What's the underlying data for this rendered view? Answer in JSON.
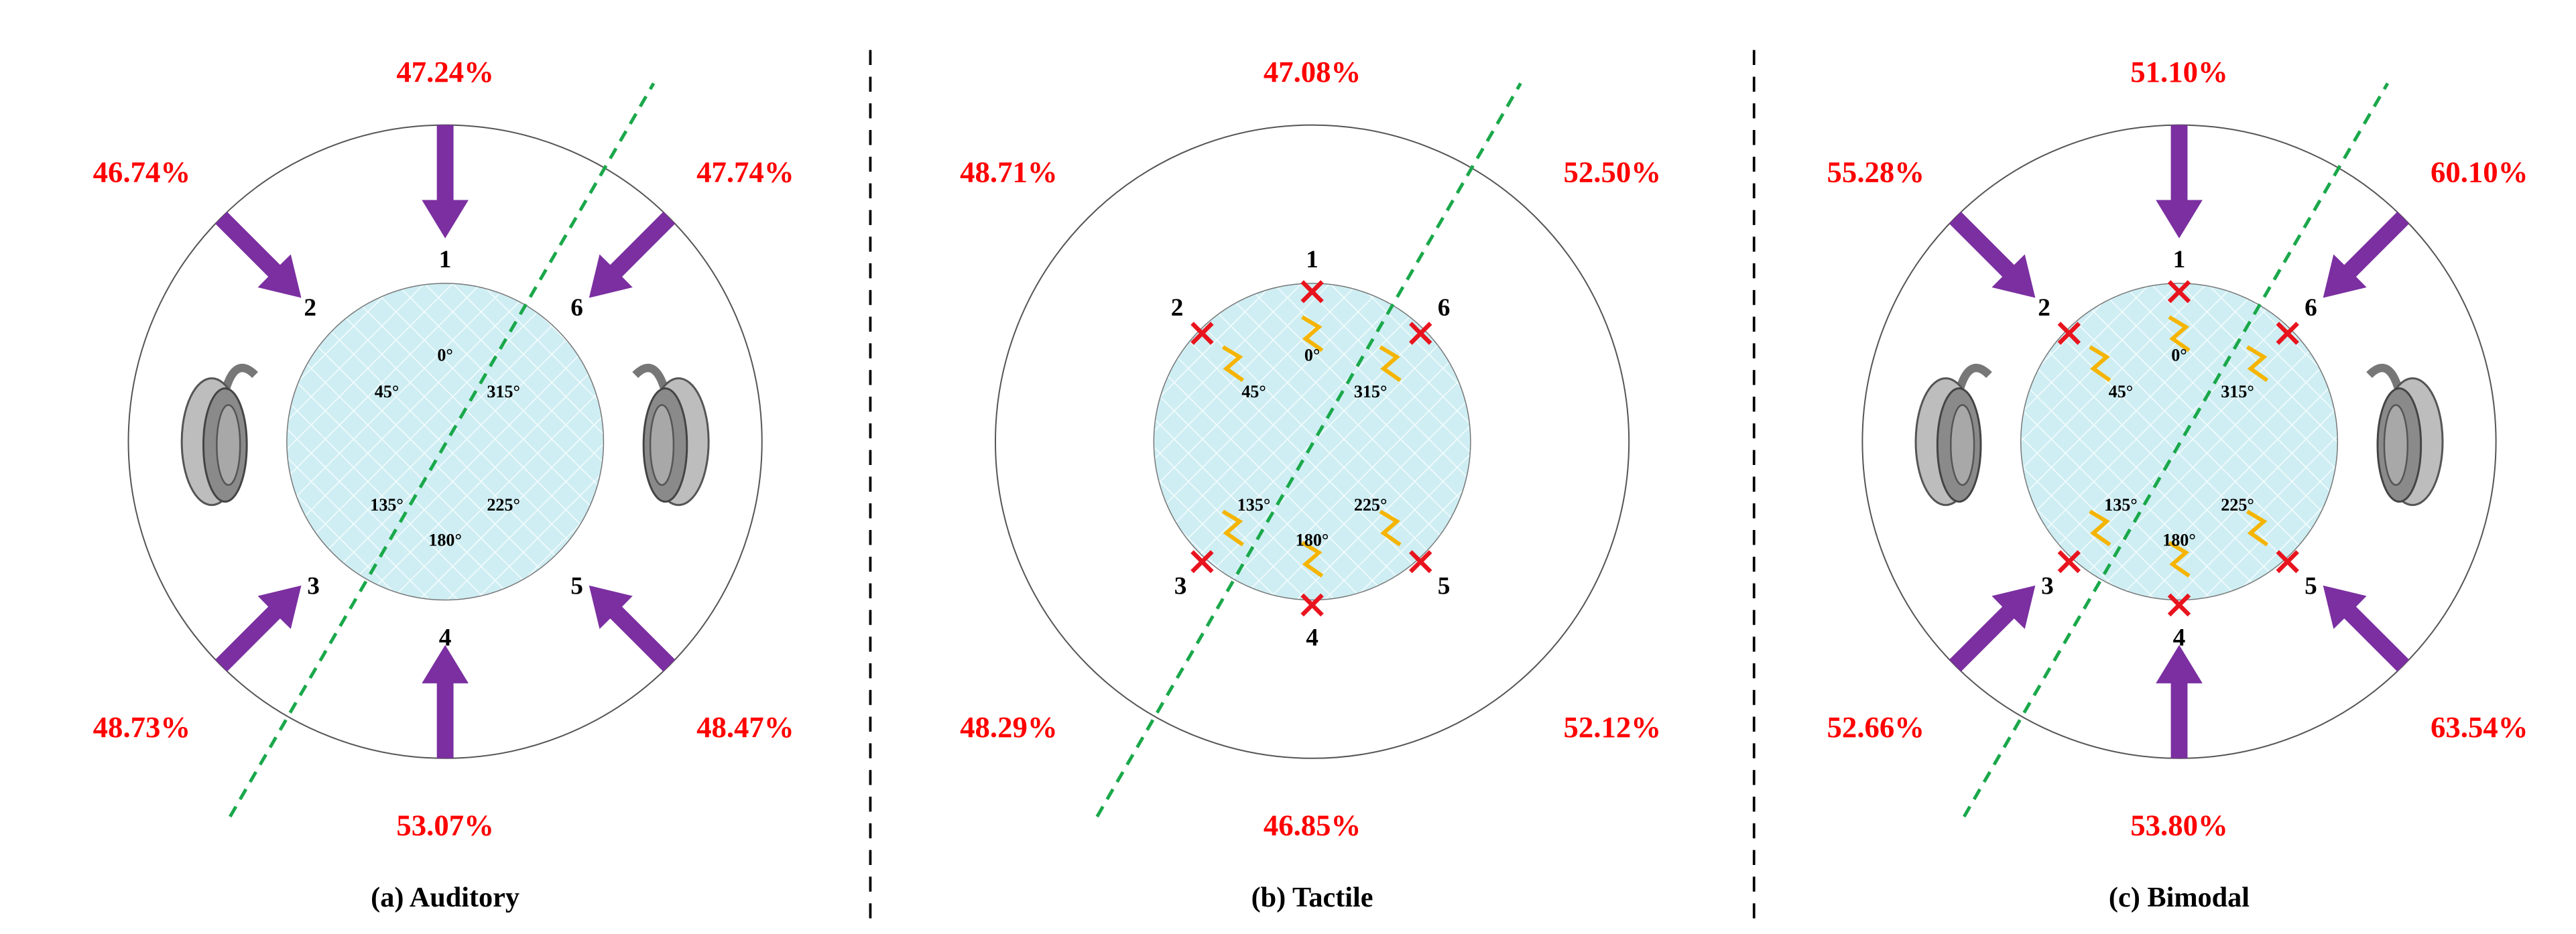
{
  "panels": [
    {
      "caption": "(a) Auditory",
      "stimulus": "auditory",
      "positions": [
        "1",
        "2",
        "3",
        "4",
        "5",
        "6"
      ],
      "percentages": [
        "47.24%",
        "46.74%",
        "48.73%",
        "53.07%",
        "48.47%",
        "47.74%"
      ],
      "angles": [
        "0°",
        "45°",
        "315°",
        "135°",
        "225°",
        "180°"
      ]
    },
    {
      "caption": "(b) Tactile",
      "stimulus": "tactile",
      "positions": [
        "1",
        "2",
        "3",
        "4",
        "5",
        "6"
      ],
      "percentages": [
        "47.08%",
        "48.71%",
        "48.29%",
        "46.85%",
        "52.12%",
        "52.50%"
      ],
      "angles": [
        "0°",
        "45°",
        "315°",
        "135°",
        "225°",
        "180°"
      ]
    },
    {
      "caption": "(c) Bimodal",
      "stimulus": "bimodal",
      "positions": [
        "1",
        "2",
        "3",
        "4",
        "5",
        "6"
      ],
      "percentages": [
        "51.10%",
        "55.28%",
        "52.66%",
        "53.80%",
        "63.54%",
        "60.10%"
      ],
      "angles": [
        "0°",
        "45°",
        "315°",
        "135°",
        "225°",
        "180°"
      ]
    }
  ]
}
